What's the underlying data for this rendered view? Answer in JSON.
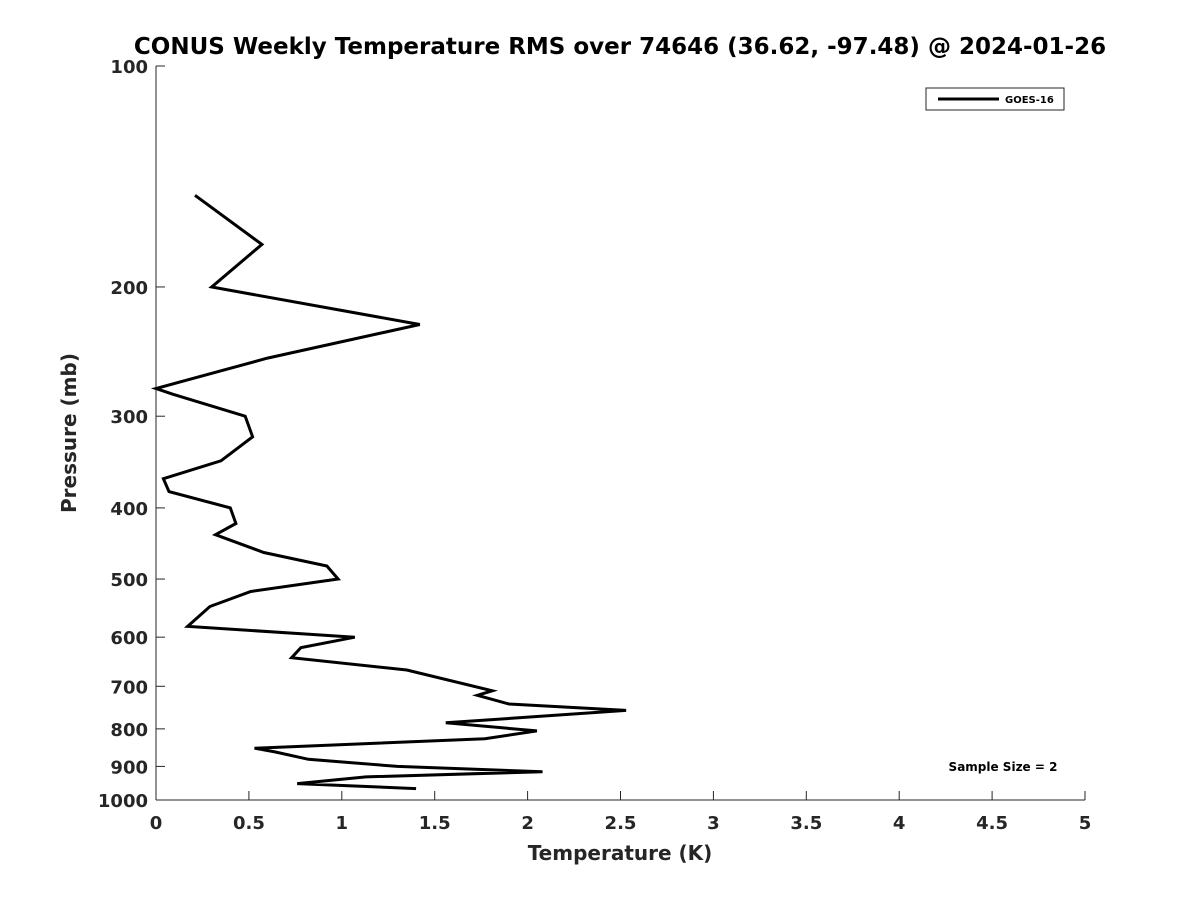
{
  "chart_data": {
    "type": "line",
    "title": "CONUS Weekly Temperature RMS over 74646 (36.62, -97.48) @ 2024-01-26",
    "xlabel": "Temperature (K)",
    "ylabel": "Pressure (mb)",
    "xlim": [
      0,
      5
    ],
    "ylim": [
      100,
      1000
    ],
    "yscale": "log",
    "y_reversed": true,
    "x_ticks": [
      "0",
      "0.5",
      "1",
      "1.5",
      "2",
      "2.5",
      "3",
      "3.5",
      "4",
      "4.5",
      "5"
    ],
    "x_tick_values": [
      0,
      0.5,
      1,
      1.5,
      2,
      2.5,
      3,
      3.5,
      4,
      4.5,
      5
    ],
    "y_ticks": [
      "100",
      "200",
      "300",
      "400",
      "500",
      "600",
      "700",
      "800",
      "900",
      "1000"
    ],
    "y_tick_values": [
      100,
      200,
      300,
      400,
      500,
      600,
      700,
      800,
      900,
      1000
    ],
    "grid": false,
    "legend_position": "top-right",
    "annotation": "Sample Size = 2",
    "series": [
      {
        "name": "GOES-16",
        "color": "#000000",
        "points": [
          {
            "x": 0.21,
            "y": 150
          },
          {
            "x": 0.57,
            "y": 175
          },
          {
            "x": 0.3,
            "y": 200
          },
          {
            "x": 1.42,
            "y": 225
          },
          {
            "x": 0.6,
            "y": 250
          },
          {
            "x": 0.0,
            "y": 275
          },
          {
            "x": 0.09,
            "y": 280
          },
          {
            "x": 0.48,
            "y": 300
          },
          {
            "x": 0.52,
            "y": 320
          },
          {
            "x": 0.35,
            "y": 345
          },
          {
            "x": 0.04,
            "y": 365
          },
          {
            "x": 0.07,
            "y": 380
          },
          {
            "x": 0.4,
            "y": 400
          },
          {
            "x": 0.43,
            "y": 420
          },
          {
            "x": 0.32,
            "y": 435
          },
          {
            "x": 0.58,
            "y": 460
          },
          {
            "x": 0.92,
            "y": 480
          },
          {
            "x": 0.98,
            "y": 500
          },
          {
            "x": 0.51,
            "y": 520
          },
          {
            "x": 0.29,
            "y": 545
          },
          {
            "x": 0.17,
            "y": 580
          },
          {
            "x": 1.07,
            "y": 600
          },
          {
            "x": 0.78,
            "y": 620
          },
          {
            "x": 0.73,
            "y": 640
          },
          {
            "x": 1.35,
            "y": 665
          },
          {
            "x": 1.81,
            "y": 710
          },
          {
            "x": 1.73,
            "y": 720
          },
          {
            "x": 1.9,
            "y": 740
          },
          {
            "x": 2.53,
            "y": 755
          },
          {
            "x": 1.56,
            "y": 785
          },
          {
            "x": 2.05,
            "y": 805
          },
          {
            "x": 1.77,
            "y": 825
          },
          {
            "x": 0.53,
            "y": 850
          },
          {
            "x": 0.64,
            "y": 860
          },
          {
            "x": 0.82,
            "y": 880
          },
          {
            "x": 1.3,
            "y": 900
          },
          {
            "x": 2.08,
            "y": 915
          },
          {
            "x": 1.13,
            "y": 930
          },
          {
            "x": 0.76,
            "y": 950
          },
          {
            "x": 1.4,
            "y": 965
          }
        ]
      }
    ]
  }
}
